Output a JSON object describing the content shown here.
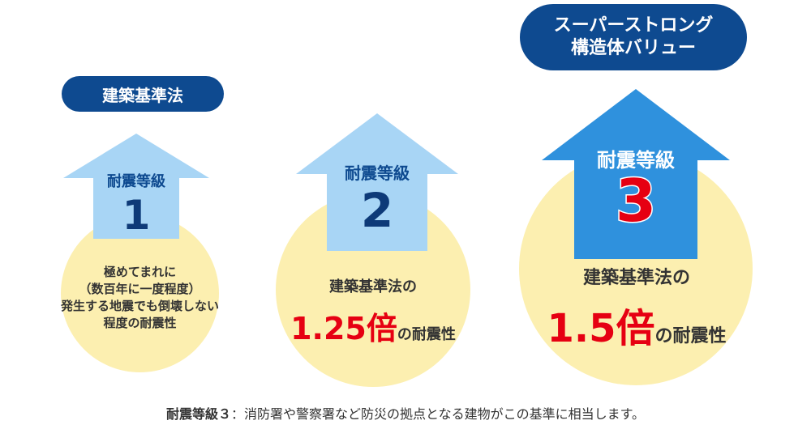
{
  "colors": {
    "navy": "#0e4a90",
    "sky_light": "#a8d5f5",
    "sky_mid": "#78c0f0",
    "blue_strong": "#2f91dd",
    "cream": "#fcefb0",
    "red": "#e60012"
  },
  "levels": [
    {
      "pill": "建築基準法",
      "grade_label": "耐震等級",
      "grade_number": "1",
      "description": [
        "極めてまれに",
        "（数百年に一度程度）",
        "発生する地震でも倒壊しない",
        "程度の耐震性"
      ]
    },
    {
      "grade_label": "耐震等級",
      "grade_number": "2",
      "description_top": "建築基準法の",
      "multiplier": "1.25倍",
      "suffix": "の耐震性"
    },
    {
      "pill": [
        "スーパーストロング",
        "構造体バリュー"
      ],
      "grade_label": "耐震等級",
      "grade_number": "3",
      "description_top": "建築基準法の",
      "multiplier": "1.5倍",
      "suffix": "の耐震性"
    }
  ],
  "footer": {
    "label": "耐震等級３",
    "text": "：消防署や警察署など防災の拠点となる建物がこの基準に相当します。"
  }
}
